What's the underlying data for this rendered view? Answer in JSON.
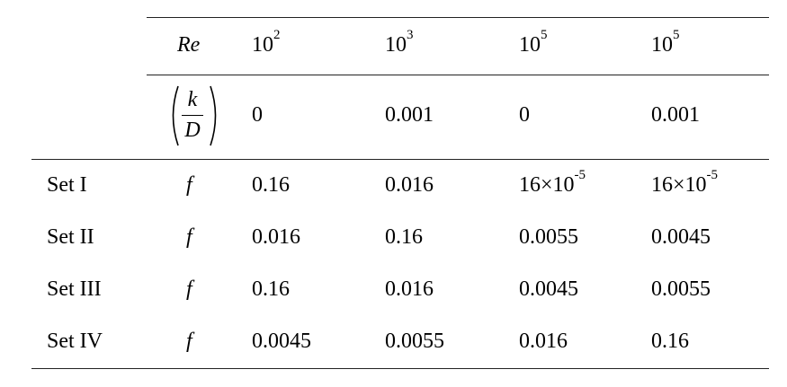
{
  "table": {
    "header": {
      "re_label": "Re",
      "re_values": [
        {
          "base": "10",
          "exp": "2"
        },
        {
          "base": "10",
          "exp": "3"
        },
        {
          "base": "10",
          "exp": "5"
        },
        {
          "base": "10",
          "exp": "5"
        }
      ],
      "kd_label": {
        "numerator": "k",
        "denominator": "D"
      },
      "kd_values": [
        "0",
        "0.001",
        "0",
        "0.001"
      ]
    },
    "rows": [
      {
        "set": "Set I",
        "symbol": "f",
        "values": [
          "0.16",
          "0.016",
          {
            "base": "16×10",
            "exp": "-5"
          },
          {
            "base": "16×10",
            "exp": "-5"
          }
        ]
      },
      {
        "set": "Set II",
        "symbol": "f",
        "values": [
          "0.016",
          "0.16",
          "0.0055",
          "0.0045"
        ]
      },
      {
        "set": "Set III",
        "symbol": "f",
        "values": [
          "0.16",
          "0.016",
          "0.0045",
          "0.0055"
        ]
      },
      {
        "set": "Set IV",
        "symbol": "f",
        "values": [
          "0.0045",
          "0.0055",
          "0.016",
          "0.16"
        ]
      }
    ]
  }
}
